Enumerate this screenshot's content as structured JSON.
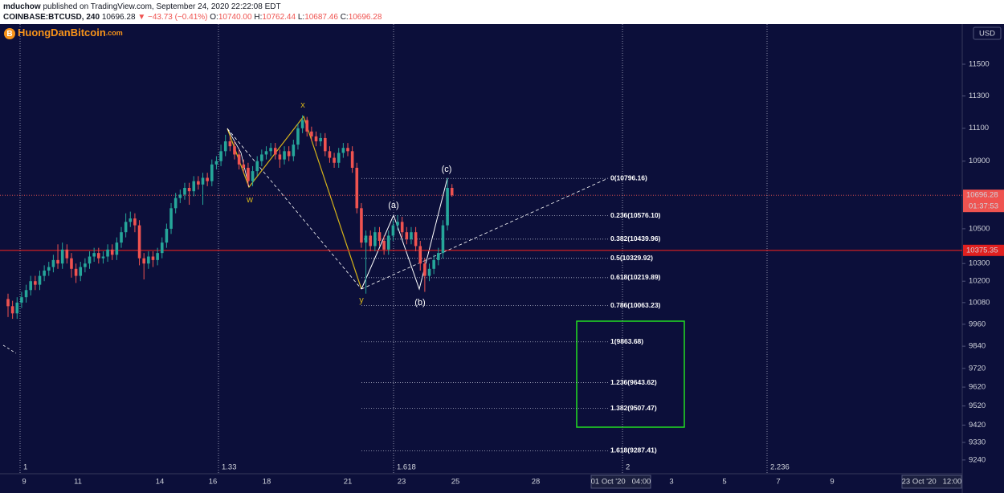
{
  "header": {
    "author": "mduchow",
    "published": "published on TradingView.com, September 24, 2020 22:22:08 EDT",
    "symbol": "COINBASE:BTCUSD, 240",
    "last": "10696.28",
    "change": "▼ −43.73 (−0.41%)",
    "ohlc": [
      {
        "label": "O:",
        "value": "10740.00"
      },
      {
        "label": "H:",
        "value": "10762.44"
      },
      {
        "label": "L:",
        "value": "10687.46"
      },
      {
        "label": "C:",
        "value": "10696.28"
      }
    ]
  },
  "logo": {
    "name": "HuongDanBitcoin",
    "suffix": ".com"
  },
  "chart_data": {
    "type": "candlestick",
    "log_scale": true,
    "grid": false,
    "up_color": "#26a69a",
    "down_color": "#ef5350",
    "open": [
      10100,
      10060,
      10020,
      10080,
      10110,
      10150,
      10200,
      10180,
      10230,
      10260,
      10280,
      10320,
      10300,
      10380,
      10330,
      10270,
      10230,
      10280,
      10300,
      10340,
      10360,
      10330,
      10340,
      10380,
      10350,
      10420,
      10480,
      10540,
      10560,
      10520,
      10330,
      10300,
      10340,
      10320,
      10360,
      10420,
      10500,
      10620,
      10680,
      10700,
      10740,
      10720,
      10780,
      10760,
      10800,
      10780,
      10880,
      10900,
      10960,
      11020,
      10990,
      10940,
      10880,
      10860,
      10780,
      10840,
      10900,
      10940,
      10960,
      10980,
      10940,
      10910,
      10960,
      10930,
      11000,
      11100,
      11150,
      11080,
      11050,
      11020,
      11040,
      10960,
      10920,
      10890,
      10950,
      10980,
      10960,
      10860,
      10620,
      10420,
      10460,
      10400,
      10480,
      10430,
      10380,
      10460,
      10520,
      10540,
      10480,
      10440,
      10480,
      10400,
      10300,
      10230,
      10270,
      10320,
      10360,
      10520,
      10740
    ],
    "high": [
      10130,
      10090,
      10110,
      10140,
      10180,
      10230,
      10230,
      10260,
      10290,
      10310,
      10350,
      10410,
      10420,
      10410,
      10360,
      10300,
      10310,
      10330,
      10370,
      10390,
      10390,
      10370,
      10410,
      10410,
      10450,
      10510,
      10590,
      10600,
      10590,
      10550,
      10360,
      10370,
      10370,
      10390,
      10450,
      10530,
      10650,
      10710,
      10730,
      10770,
      10770,
      10810,
      10810,
      10830,
      10830,
      10910,
      10930,
      11000,
      11060,
      11050,
      11020,
      10970,
      10910,
      10890,
      10870,
      10930,
      10970,
      10990,
      11010,
      11010,
      10970,
      10990,
      10990,
      11030,
      11130,
      11180,
      11170,
      11110,
      11080,
      11070,
      11070,
      10990,
      10950,
      10980,
      11010,
      11010,
      10990,
      10890,
      10650,
      10490,
      10490,
      10510,
      10510,
      10460,
      10490,
      10550,
      10580,
      10570,
      10510,
      10510,
      10510,
      10430,
      10330,
      10300,
      10350,
      10390,
      10550,
      10800,
      10762.44
    ],
    "low": [
      10000,
      9990,
      9990,
      10050,
      10080,
      10120,
      10150,
      10150,
      10200,
      10230,
      10250,
      10270,
      10270,
      10300,
      10220,
      10190,
      10200,
      10250,
      10270,
      10310,
      10300,
      10300,
      10310,
      10320,
      10320,
      10390,
      10450,
      10510,
      10480,
      10290,
      10210,
      10270,
      10280,
      10290,
      10330,
      10390,
      10470,
      10590,
      10650,
      10670,
      10640,
      10690,
      10730,
      10640,
      10750,
      10750,
      10850,
      10870,
      10930,
      10960,
      10910,
      10850,
      10830,
      10750,
      10750,
      10810,
      10870,
      10910,
      10930,
      10910,
      10860,
      10880,
      10900,
      10900,
      10970,
      11070,
      11050,
      11020,
      10990,
      10990,
      10930,
      10890,
      10860,
      10860,
      10920,
      10930,
      10830,
      10590,
      10390,
      10130,
      10370,
      10370,
      10400,
      10350,
      10350,
      10430,
      10490,
      10450,
      10410,
      10410,
      10370,
      10260,
      10140,
      10200,
      10240,
      10290,
      10330,
      10490,
      10687.46
    ],
    "close": [
      10060,
      10020,
      10080,
      10110,
      10150,
      10200,
      10180,
      10230,
      10260,
      10280,
      10320,
      10300,
      10380,
      10330,
      10270,
      10230,
      10280,
      10300,
      10340,
      10360,
      10330,
      10340,
      10380,
      10350,
      10420,
      10480,
      10540,
      10560,
      10520,
      10330,
      10300,
      10340,
      10320,
      10360,
      10420,
      10500,
      10620,
      10680,
      10700,
      10740,
      10720,
      10780,
      10760,
      10800,
      10780,
      10880,
      10900,
      10960,
      11020,
      10990,
      10940,
      10880,
      10860,
      10780,
      10840,
      10900,
      10940,
      10960,
      10980,
      10940,
      10910,
      10960,
      10930,
      11000,
      11100,
      11150,
      11080,
      11050,
      11020,
      11040,
      10960,
      10920,
      10890,
      10950,
      10980,
      10960,
      10860,
      10620,
      10420,
      10460,
      10400,
      10480,
      10430,
      10380,
      10460,
      10520,
      10540,
      10480,
      10440,
      10480,
      10400,
      10300,
      10230,
      10270,
      10320,
      10360,
      10520,
      10740,
      10696.28
    ],
    "ylim": [
      9170,
      11758
    ],
    "yticks": [
      11500,
      11300,
      11100,
      10900,
      10500,
      10300,
      10200,
      10080,
      9960,
      9840,
      9720,
      9620,
      9520,
      9420,
      9330,
      9240
    ],
    "currency": "USD",
    "current_price": 10696.28,
    "countdown": "01:37:53",
    "horizontal_line": 10375.35,
    "fib_levels": [
      {
        "value": 10796.16,
        "label": "0(10796.16)"
      },
      {
        "value": 10576.1,
        "label": "0.236(10576.10)"
      },
      {
        "value": 10439.96,
        "label": "0.382(10439.96)"
      },
      {
        "value": 10329.92,
        "label": "0.5(10329.92)"
      },
      {
        "value": 10219.89,
        "label": "0.618(10219.89)"
      },
      {
        "value": 10063.23,
        "label": "0.786(10063.23)"
      },
      {
        "value": 9863.68,
        "label": "1(9863.68)"
      },
      {
        "value": 9643.62,
        "label": "1.236(9643.62)"
      },
      {
        "value": 9507.47,
        "label": "1.382(9507.47)"
      },
      {
        "value": 9287.41,
        "label": "1.618(9287.41)"
      }
    ],
    "fib_time_labels": [
      "1",
      "1.33",
      "1.618",
      "2",
      "2.236"
    ],
    "wave_labels": [
      "w",
      "x",
      "y",
      "(a)",
      "(b)",
      "(c)"
    ],
    "x_labels": [
      "9",
      "11",
      "14",
      "16",
      "18",
      "21",
      "23",
      "25",
      "28",
      "01 Oct '20   04:00",
      "3",
      "5",
      "7",
      "9",
      "23 Oct '20   12:00"
    ]
  }
}
